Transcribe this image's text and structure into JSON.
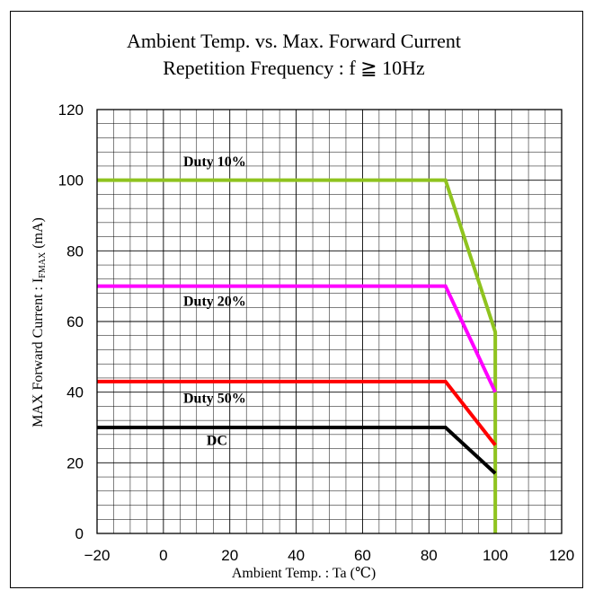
{
  "chart_data": {
    "type": "line",
    "title": "Ambient Temp. vs. Max. Forward Current",
    "subtitle": "Repetition Frequency : f ≧ 10Hz",
    "xlabel": "Ambient Temp. : Ta (℃)",
    "ylabel_main": "MAX Forward Current : I",
    "ylabel_subscript": "FMAX",
    "ylabel_unit": " (mA)",
    "xlim": [
      -20,
      120
    ],
    "ylim": [
      0,
      120
    ],
    "x_ticks": [
      "−20",
      "0",
      "20",
      "40",
      "60",
      "80",
      "100",
      "120"
    ],
    "x_tick_values": [
      -20,
      0,
      20,
      40,
      60,
      80,
      100,
      120
    ],
    "y_ticks": [
      "0",
      "20",
      "40",
      "60",
      "80",
      "100",
      "120"
    ],
    "y_tick_values": [
      0,
      20,
      40,
      60,
      80,
      100,
      120
    ],
    "grid": true,
    "x_minor_step": 5,
    "y_minor_step": 4,
    "series": [
      {
        "name": "Duty 10%",
        "color": "#8fc31f",
        "points": [
          [
            -20,
            100
          ],
          [
            85,
            100
          ],
          [
            100,
            57
          ],
          [
            100,
            0
          ]
        ]
      },
      {
        "name": "Duty 20%",
        "color": "#ff00ff",
        "points": [
          [
            -20,
            70
          ],
          [
            85,
            70
          ],
          [
            100,
            40
          ]
        ]
      },
      {
        "name": "Duty 50%",
        "color": "#ff0000",
        "points": [
          [
            -20,
            43
          ],
          [
            85,
            43
          ],
          [
            100,
            25
          ]
        ]
      },
      {
        "name": "DC",
        "color": "#000000",
        "points": [
          [
            -20,
            30
          ],
          [
            85,
            30
          ],
          [
            100,
            17
          ]
        ]
      }
    ],
    "annotations": [
      {
        "text": "Duty 10%",
        "x": 6,
        "y": 104
      },
      {
        "text": "Duty 20%",
        "x": 6,
        "y": 64.5
      },
      {
        "text": "Duty 50%",
        "x": 6,
        "y": 37
      },
      {
        "text": "DC",
        "x": 13,
        "y": 25
      }
    ]
  }
}
